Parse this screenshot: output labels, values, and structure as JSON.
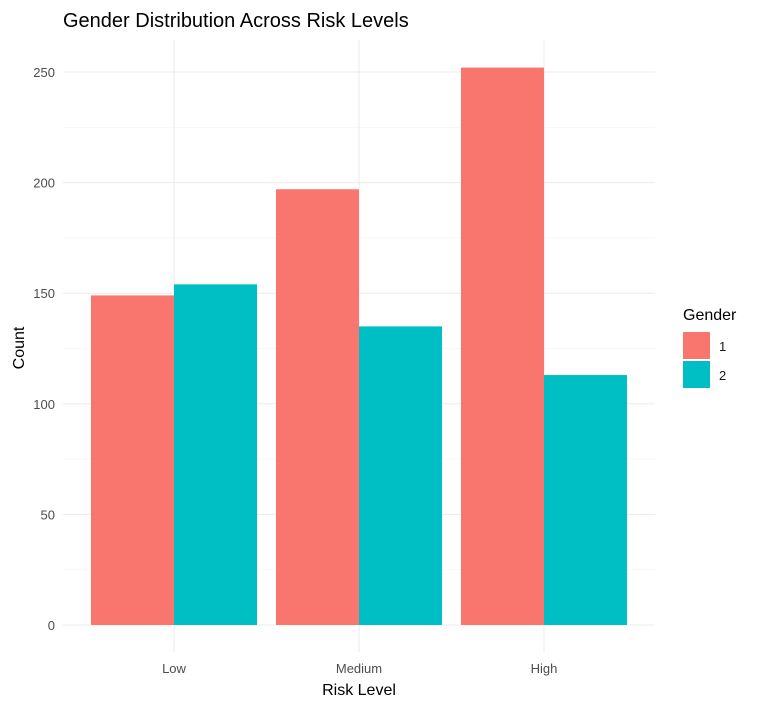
{
  "chart_data": {
    "type": "bar",
    "title": "Gender Distribution Across Risk Levels",
    "xlabel": "Risk Level",
    "ylabel": "Count",
    "categories": [
      "Low",
      "Medium",
      "High"
    ],
    "series": [
      {
        "name": "1",
        "values": [
          149,
          197,
          252
        ],
        "color": "#F8766D"
      },
      {
        "name": "2",
        "values": [
          154,
          135,
          113
        ],
        "color": "#00BFC4"
      }
    ],
    "ylim": [
      0,
      260
    ],
    "yticks": [
      0,
      50,
      100,
      150,
      200,
      250
    ],
    "legend": {
      "title": "Gender",
      "position": "right"
    },
    "grid": true
  }
}
